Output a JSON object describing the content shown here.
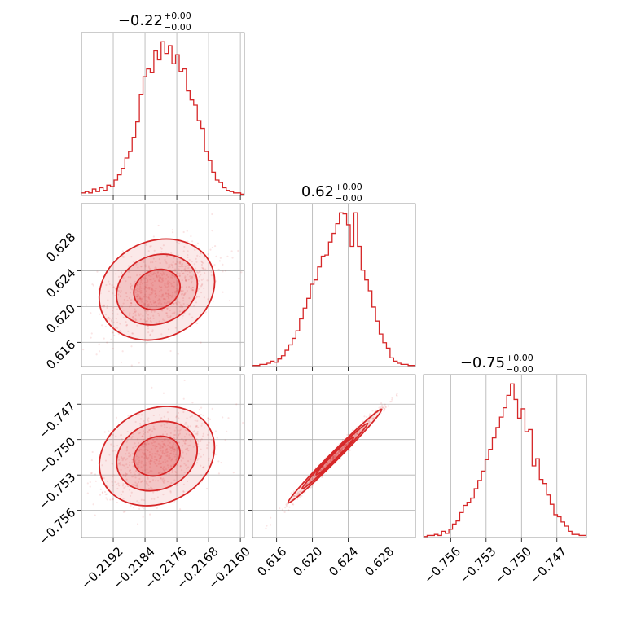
{
  "chart_data": {
    "type": "corner",
    "accent_color": "#d62728",
    "grid": true,
    "parameters": [
      {
        "title": "−0.22",
        "title_sup": "+0.00",
        "title_sub": "−0.00",
        "range": [
          -0.22,
          -0.2159
        ],
        "ticks": [
          -0.2192,
          -0.2184,
          -0.2176,
          -0.2168,
          -0.216
        ],
        "tick_labels": [
          "−0.2192",
          "−0.2184",
          "−0.2176",
          "−0.2168",
          "−0.2160"
        ]
      },
      {
        "title": "0.62",
        "title_sup": "+0.00",
        "title_sub": "−0.00",
        "range": [
          0.6133,
          0.6315
        ],
        "ticks": [
          0.616,
          0.62,
          0.624,
          0.628
        ],
        "tick_labels": [
          "0.616",
          "0.620",
          "0.624",
          "0.628"
        ]
      },
      {
        "title": "−0.75",
        "title_sup": "+0.00",
        "title_sub": "−0.00",
        "range": [
          -0.7583,
          -0.7445
        ],
        "ticks": [
          -0.756,
          -0.753,
          -0.75,
          -0.747
        ],
        "tick_labels": [
          "−0.756",
          "−0.753",
          "−0.750",
          "−0.747"
        ]
      }
    ],
    "histograms": [
      {
        "param": 0,
        "counts": [
          2,
          3,
          2,
          5,
          3,
          6,
          4,
          8,
          7,
          12,
          16,
          21,
          29,
          34,
          45,
          57,
          78,
          92,
          98,
          95,
          112,
          105,
          119,
          110,
          116,
          102,
          109,
          96,
          98,
          81,
          74,
          70,
          58,
          52,
          34,
          27,
          18,
          12,
          10,
          6,
          4,
          3,
          2,
          2,
          1
        ]
      },
      {
        "param": 1,
        "counts": [
          1,
          1,
          2,
          2,
          3,
          5,
          4,
          7,
          10,
          15,
          20,
          26,
          33,
          44,
          54,
          63,
          76,
          80,
          92,
          102,
          103,
          115,
          123,
          132,
          142,
          141,
          131,
          111,
          142,
          111,
          89,
          80,
          70,
          55,
          42,
          30,
          22,
          17,
          8,
          5,
          3,
          2,
          2,
          1,
          1
        ]
      },
      {
        "param": 2,
        "counts": [
          1,
          2,
          2,
          3,
          2,
          6,
          4,
          8,
          13,
          16,
          24,
          31,
          34,
          38,
          47,
          55,
          64,
          75,
          85,
          96,
          106,
          116,
          125,
          137,
          148,
          133,
          115,
          124,
          102,
          104,
          69,
          76,
          56,
          52,
          41,
          32,
          22,
          20,
          15,
          11,
          6,
          3,
          3,
          2,
          2
        ]
      }
    ]
  }
}
